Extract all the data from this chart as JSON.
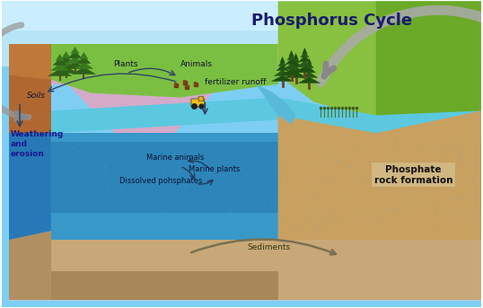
{
  "title": "Phosphorus Cycle",
  "title_fontsize": 13,
  "title_color": "#1a1a6e",
  "labels": {
    "plants": "Plants",
    "animals": "Animals",
    "soils": "Soils",
    "fertilizer": "fertilizer runoff",
    "weathering": "Weathering\nand\nerosion",
    "marine_animals": "Marine animals",
    "marine_plants": "Marine plants",
    "dissolved": "Dissolved pohsphates",
    "sediments": "Sediments",
    "phosphate_rock": "Phosphate\nrock formation"
  },
  "colors": {
    "sky_top": "#7ecef4",
    "sky_bottom": "#a8ddf8",
    "mountain": "#d4aac8",
    "land_green": "#7bbf42",
    "land_green_dark": "#4e9a2a",
    "land_green_right": "#5aaa30",
    "soil_brown": "#b06830",
    "soil_face": "#c07840",
    "water_surface": "#5cc8e0",
    "water_mid": "#3898c8",
    "water_deep": "#2070a8",
    "water_left_face": "#2878b8",
    "seafloor": "#c8a878",
    "seafloor_dark": "#a88858",
    "right_slope": "#c8a060",
    "river": "#5ab8d8",
    "arrow_dark": "#334466",
    "arrow_gray": "#888888",
    "arrow_gray_big": "#999999",
    "tree_dark": "#2d6018",
    "tree_mid": "#3a7a20",
    "trunk": "#6b4226"
  }
}
